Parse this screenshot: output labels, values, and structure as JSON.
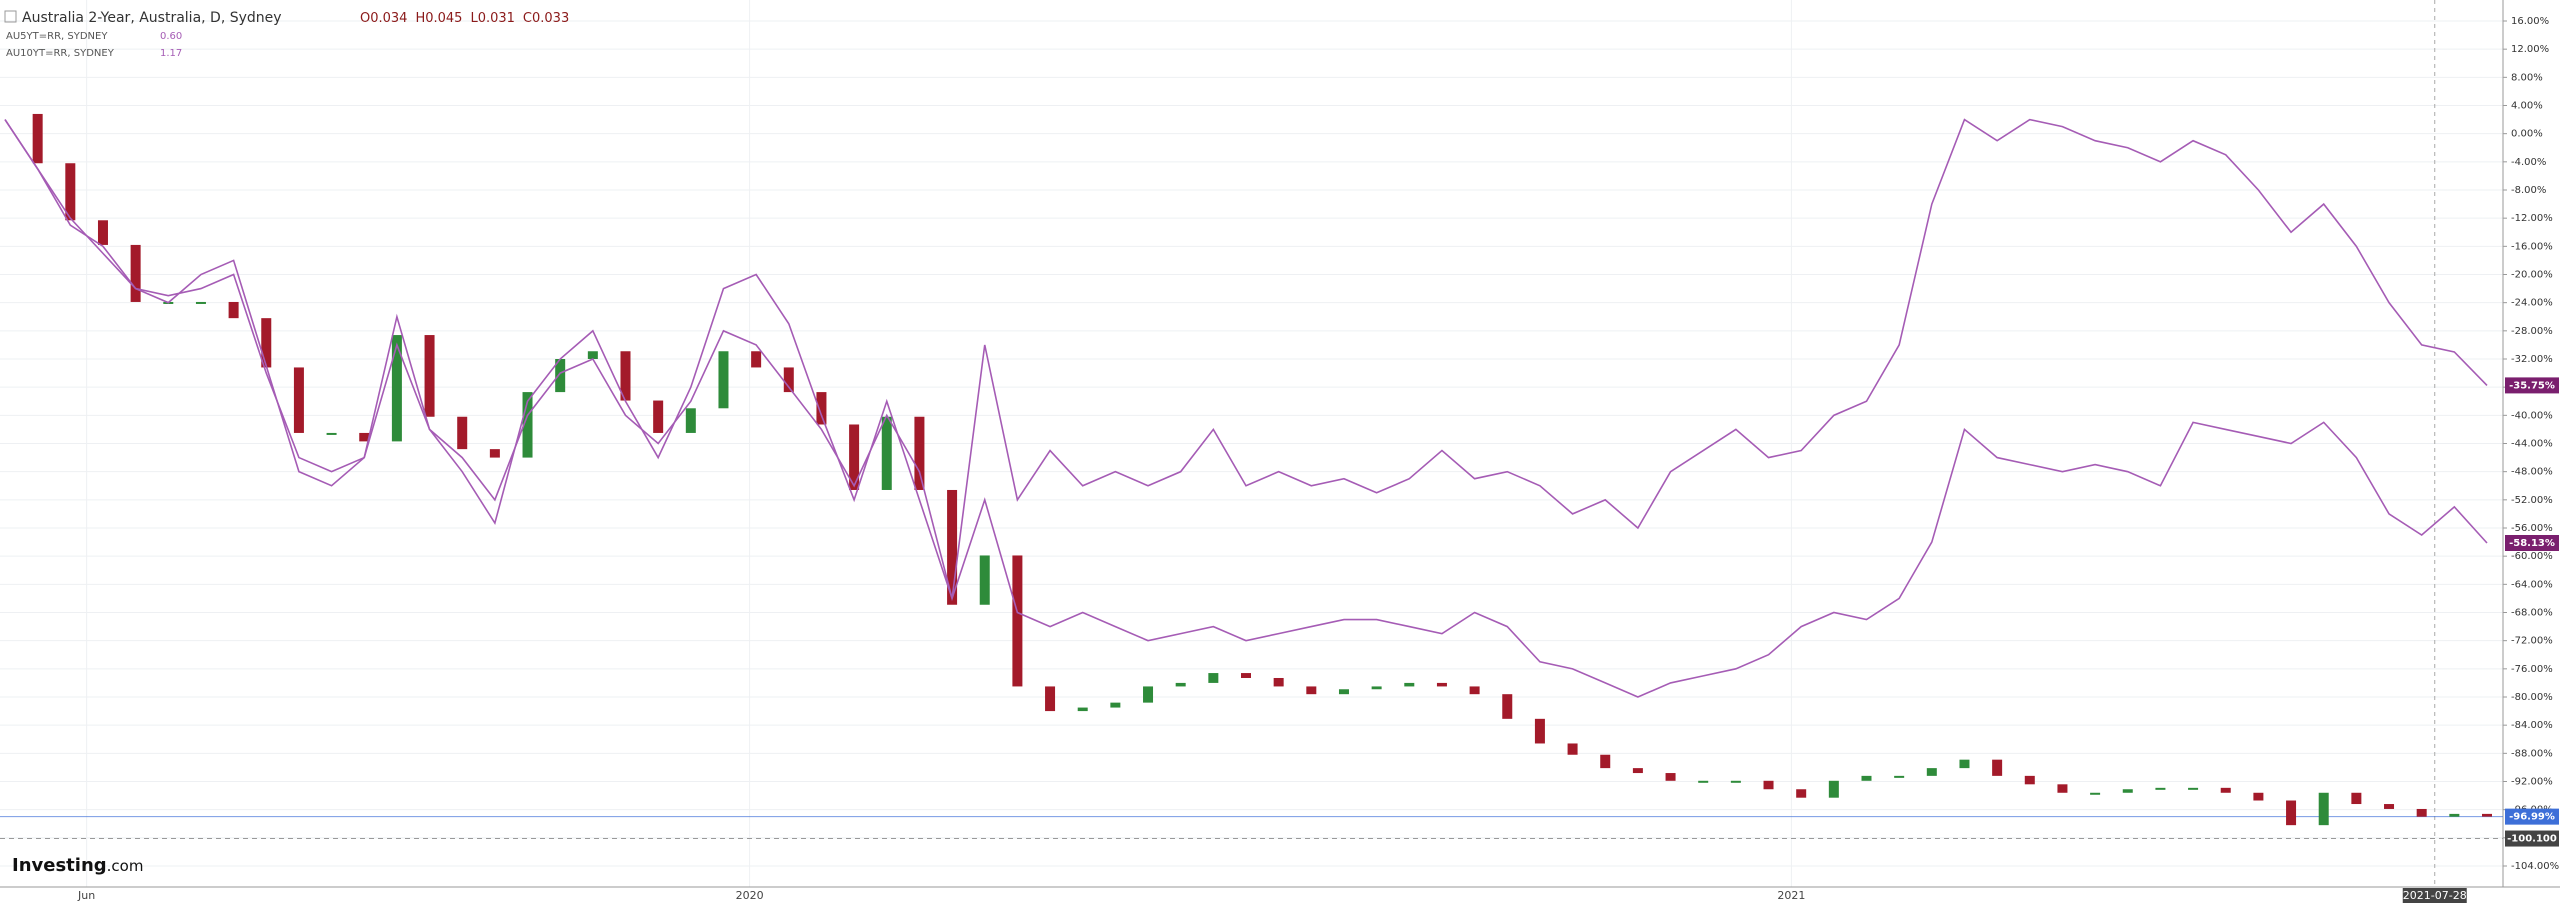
{
  "chart_data": {
    "type": "line",
    "title": "Australia 2-Year, Australia, D, Sydney",
    "ohlc_labels": [
      "O0.034",
      "H0.045",
      "L0.031",
      "C0.033"
    ],
    "watermark": [
      "Investing",
      ".com"
    ],
    "xlim": [
      0,
      76
    ],
    "xticks": [
      {
        "value": 2.5,
        "label": "Jun"
      },
      {
        "value": 22.8,
        "label": "2020"
      },
      {
        "value": 54.7,
        "label": "2021"
      }
    ],
    "cursor": {
      "value": 74.4,
      "label": "2021-07-28"
    },
    "ylim": [
      -104,
      16
    ],
    "yticks": [
      {
        "value": 16,
        "label": "16.00%"
      },
      {
        "value": 12,
        "label": "12.00%"
      },
      {
        "value": 8,
        "label": "8.00%"
      },
      {
        "value": 4,
        "label": "4.00%"
      },
      {
        "value": 0,
        "label": "0.00%"
      },
      {
        "value": -4,
        "label": "-4.00%"
      },
      {
        "value": -8,
        "label": "-8.00%"
      },
      {
        "value": -12,
        "label": "-12.00%"
      },
      {
        "value": -16,
        "label": "-16.00%"
      },
      {
        "value": -20,
        "label": "-20.00%"
      },
      {
        "value": -24,
        "label": "-24.00%"
      },
      {
        "value": -28,
        "label": "-28.00%"
      },
      {
        "value": -32,
        "label": "-32.00%"
      },
      {
        "value": -36,
        "label": "-36.00%"
      },
      {
        "value": -40,
        "label": "-40.00%"
      },
      {
        "value": -44,
        "label": "-44.00%"
      },
      {
        "value": -48,
        "label": "-48.00%"
      },
      {
        "value": -52,
        "label": "-52.00%"
      },
      {
        "value": -56,
        "label": "-56.00%"
      },
      {
        "value": -60,
        "label": "-60.00%"
      },
      {
        "value": -64,
        "label": "-64.00%"
      },
      {
        "value": -68,
        "label": "-68.00%"
      },
      {
        "value": -72,
        "label": "-72.00%"
      },
      {
        "value": -76,
        "label": "-76.00%"
      },
      {
        "value": -80,
        "label": "-80.00%"
      },
      {
        "value": -84,
        "label": "-84.00%"
      },
      {
        "value": -88,
        "label": "-88.00%"
      },
      {
        "value": -92,
        "label": "-92.00%"
      },
      {
        "value": -96,
        "label": "-96.00%"
      },
      {
        "value": -100,
        "label": "-100.00%"
      },
      {
        "value": -104,
        "label": "-104.00%"
      }
    ],
    "reference_line": {
      "value": -100.1,
      "label": "-100.100"
    },
    "grid": true,
    "series": [
      {
        "name": "Australia 2-Year, Australia, D, Sydney",
        "style": "candle",
        "color": "#3d6fd8",
        "up_color": "#2e8b3a",
        "down_color": "#a31a2a",
        "last_label": "-96.99%",
        "values": [
          2.8,
          -4.2,
          -12.3,
          -15.8,
          -23.9,
          -23.9,
          -23.9,
          -26.2,
          -33.2,
          -42.5,
          -42.5,
          -43.7,
          -28.6,
          -40.2,
          -44.8,
          -46,
          -36.7,
          -32,
          -30.9,
          -37.9,
          -42.5,
          -39,
          -30.9,
          -33.2,
          -36.7,
          -41.3,
          -50.6,
          -40.2,
          -50.6,
          -66.9,
          -59.9,
          -78.5,
          -82,
          -81.5,
          -80.8,
          -78.5,
          -78,
          -76.6,
          -77.3,
          -78.5,
          -79.6,
          -78.9,
          -78.5,
          -78,
          -78.5,
          -79.6,
          -83.1,
          -86.6,
          -88.2,
          -90.1,
          -90.8,
          -91.9,
          -91.9,
          -91.9,
          -93.1,
          -94.3,
          -91.9,
          -91.2,
          -91.2,
          -90.1,
          -88.9,
          -91.2,
          -92.4,
          -93.6,
          -93.6,
          -93.1,
          -92.9,
          -92.9,
          -93.6,
          -94.7,
          -98.2,
          -93.6,
          -95.2,
          -95.9,
          -97,
          -96.6,
          -96.99
        ]
      },
      {
        "name": "AU5YT=RR, SYDNEY",
        "style": "line",
        "color": "#a55cb5",
        "label_color": "#7a1f6e",
        "last": "0.60",
        "last_label": "-58.13%",
        "values": [
          2,
          -5,
          -13,
          -16,
          -22,
          -23,
          -22,
          -20,
          -34,
          -46,
          -48,
          -46,
          -30,
          -42,
          -46,
          -52,
          -40,
          -34,
          -32,
          -40,
          -44,
          -38,
          -28,
          -30,
          -36,
          -42,
          -50,
          -40,
          -48,
          -66,
          -52,
          -68,
          -70,
          -68,
          -70,
          -72,
          -71,
          -70,
          -72,
          -71,
          -70,
          -69,
          -69,
          -70,
          -71,
          -68,
          -70,
          -75,
          -76,
          -78,
          -80,
          -78,
          -77,
          -76,
          -74,
          -70,
          -68,
          -69,
          -66,
          -58,
          -42,
          -46,
          -47,
          -48,
          -47,
          -48,
          -50,
          -41,
          -42,
          -43,
          -44,
          -41,
          -46,
          -54,
          -57,
          -53,
          -58.13
        ]
      },
      {
        "name": "AU10YT=RR, SYDNEY",
        "style": "line",
        "color": "#a55cb5",
        "label_color": "#7a1f6e",
        "last": "1.17",
        "last_label": "-35.75%",
        "values": [
          2,
          -5,
          -12,
          -17,
          -22,
          -24,
          -20,
          -18,
          -33,
          -48,
          -50,
          -46,
          -26,
          -42,
          -48,
          -55.3,
          -38,
          -32,
          -28,
          -38,
          -46,
          -36,
          -22,
          -20,
          -27,
          -40,
          -52,
          -38,
          -52,
          -66,
          -30,
          -52,
          -45,
          -50,
          -48,
          -50,
          -48,
          -42,
          -50,
          -48,
          -50,
          -49,
          -51,
          -49,
          -45,
          -49,
          -48,
          -50,
          -54,
          -52,
          -56,
          -48,
          -45,
          -42,
          -46,
          -45,
          -40,
          -38,
          -30,
          -10,
          2,
          -1,
          2,
          1,
          -1,
          -2,
          -4,
          -1,
          -3,
          -8,
          -14,
          -10,
          -16,
          -24,
          -30,
          -31,
          -35.75
        ]
      }
    ]
  }
}
